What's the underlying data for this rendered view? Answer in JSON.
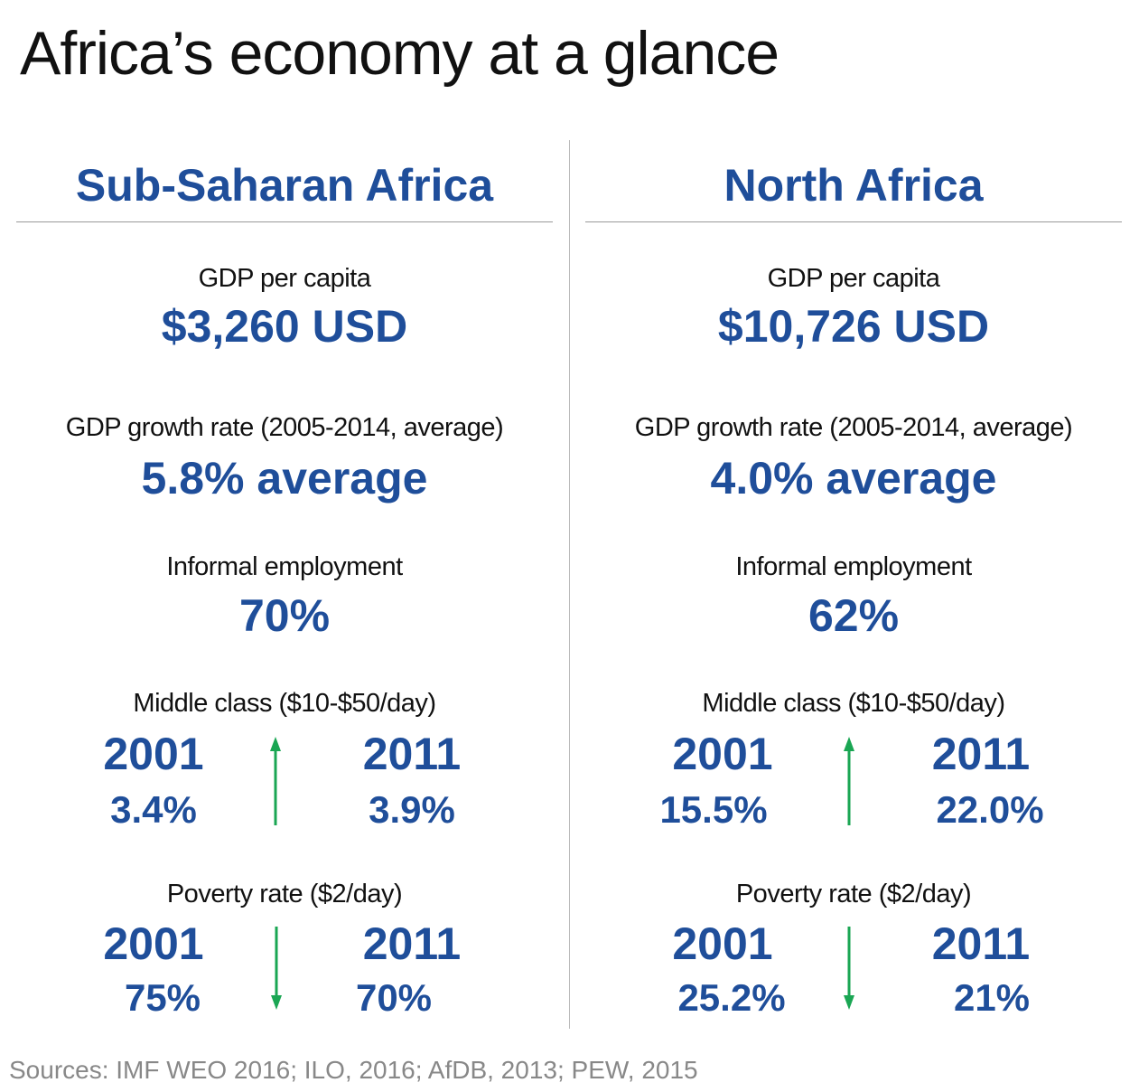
{
  "colors": {
    "accent": "#1f4e9a",
    "arrow": "#1aa653",
    "text": "#111111",
    "muted": "#888888"
  },
  "title": "Africa’s economy at a glance",
  "sources": "Sources: IMF WEO 2016; ILO, 2016; AfDB, 2013; PEW, 2015",
  "regions": [
    {
      "name": "Sub-Saharan Africa",
      "gdp_label": "GDP per capita",
      "gdp_value": "$3,260 USD",
      "growth_label": "GDP growth rate (2005-2014, average)",
      "growth_value": "5.8% average",
      "informal_label": "Informal employment",
      "informal_value": "70%",
      "middle": {
        "label": "Middle class ($10-$50/day)",
        "year1": "2001",
        "val1": "3.4%",
        "year2": "2011",
        "val2": "3.9%",
        "direction": "up"
      },
      "poverty": {
        "label": "Poverty rate ($2/day)",
        "year1": "2001",
        "val1": "75%",
        "year2": "2011",
        "val2": "70%",
        "direction": "down"
      }
    },
    {
      "name": "North Africa",
      "gdp_label": "GDP per capita",
      "gdp_value": "$10,726 USD",
      "growth_label": "GDP growth rate (2005-2014, average)",
      "growth_value": "4.0% average",
      "informal_label": "Informal employment",
      "informal_value": "62%",
      "middle": {
        "label": "Middle class ($10-$50/day)",
        "year1": "2001",
        "val1": "15.5%",
        "year2": "2011",
        "val2": "22.0%",
        "direction": "up"
      },
      "poverty": {
        "label": "Poverty rate ($2/day)",
        "year1": "2001",
        "val1": "25.2%",
        "year2": "2011",
        "val2": "21%",
        "direction": "down"
      }
    }
  ],
  "chart_data": {
    "type": "table",
    "title": "Africa’s economy at a glance",
    "columns": [
      "Sub-Saharan Africa",
      "North Africa"
    ],
    "rows": [
      {
        "metric": "GDP per capita",
        "unit": "USD",
        "values": [
          3260,
          10726
        ]
      },
      {
        "metric": "GDP growth rate (2005-2014, average)",
        "unit": "%",
        "values": [
          5.8,
          4.0
        ]
      },
      {
        "metric": "Informal employment",
        "unit": "%",
        "values": [
          70,
          62
        ]
      },
      {
        "metric": "Middle class ($10-$50/day) 2001",
        "unit": "%",
        "values": [
          3.4,
          15.5
        ]
      },
      {
        "metric": "Middle class ($10-$50/day) 2011",
        "unit": "%",
        "values": [
          3.9,
          22.0
        ]
      },
      {
        "metric": "Poverty rate ($2/day) 2001",
        "unit": "%",
        "values": [
          75,
          25.2
        ]
      },
      {
        "metric": "Poverty rate ($2/day) 2011",
        "unit": "%",
        "values": [
          70,
          21
        ]
      }
    ]
  }
}
